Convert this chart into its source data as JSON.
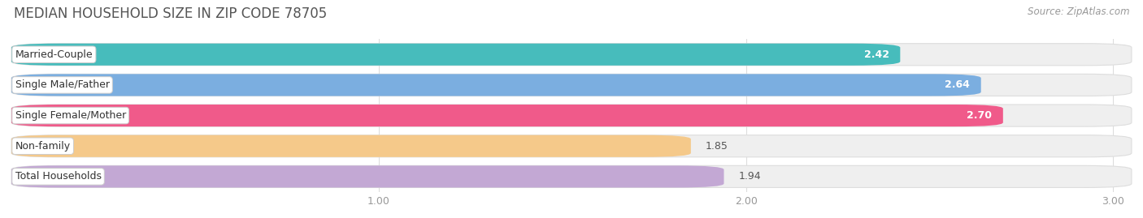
{
  "title": "MEDIAN HOUSEHOLD SIZE IN ZIP CODE 78705",
  "source": "Source: ZipAtlas.com",
  "categories": [
    "Married-Couple",
    "Single Male/Father",
    "Single Female/Mother",
    "Non-family",
    "Total Households"
  ],
  "values": [
    2.42,
    2.64,
    2.7,
    1.85,
    1.94
  ],
  "bar_colors": [
    "#47BCBC",
    "#7BAEE0",
    "#F05A8A",
    "#F5C98A",
    "#C3A8D4"
  ],
  "bg_colors": [
    "#EFEFEF",
    "#EFEFEF",
    "#EFEFEF",
    "#EFEFEF",
    "#EFEFEF"
  ],
  "label_bg_colors": [
    "#E8F8F8",
    "#E5EEF8",
    "#FDE8F0",
    "#FEF4E5",
    "#F0EBF8"
  ],
  "xmin": 0.0,
  "xmax": 3.05,
  "xticks": [
    1.0,
    2.0,
    3.0
  ],
  "title_fontsize": 12,
  "source_fontsize": 8.5,
  "label_fontsize": 9,
  "value_fontsize": 9,
  "tick_fontsize": 9,
  "figwidth": 14.06,
  "figheight": 2.69,
  "dpi": 100
}
